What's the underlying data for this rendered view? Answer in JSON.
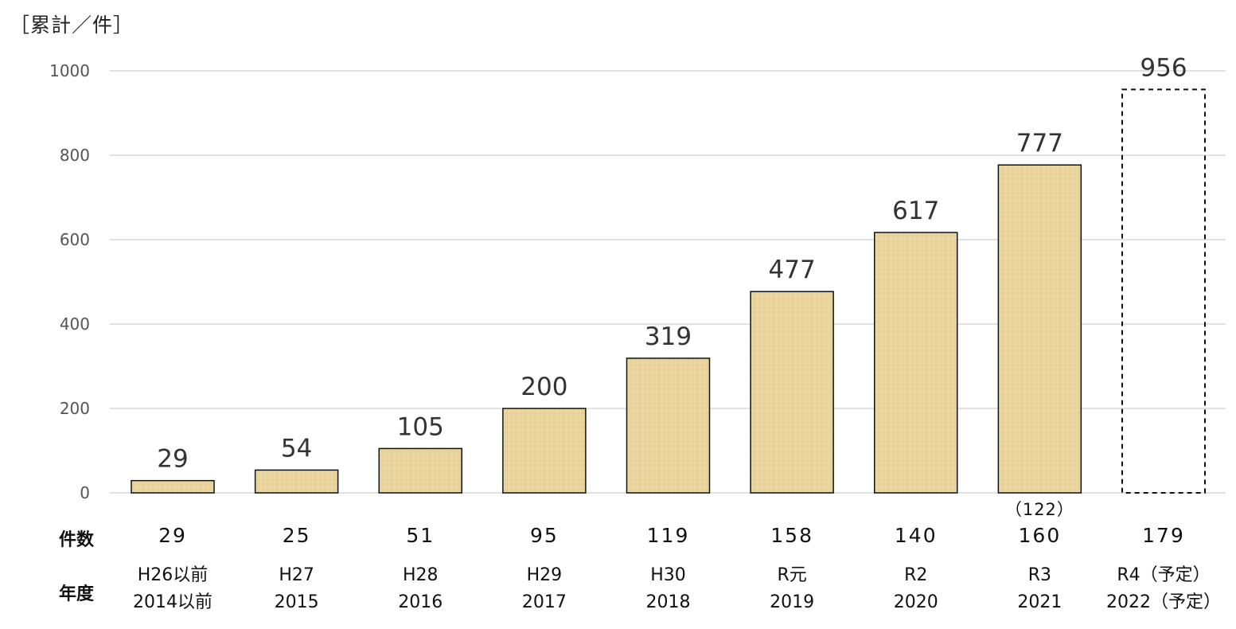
{
  "unit_label": "［累計／件］",
  "row_labels": {
    "count": "件数",
    "year": "年度"
  },
  "colors": {
    "bar_fill": "#e8d29a",
    "bar_stroke": "#111111",
    "grid": "#d9d9d9"
  },
  "chart_data": {
    "type": "bar",
    "title": "",
    "ylabel": "［累計／件］",
    "ylim": [
      0,
      1000
    ],
    "yticks": [
      0,
      200,
      400,
      600,
      800,
      1000
    ],
    "grid": true,
    "categories": [
      {
        "era": "H26以前",
        "year": "2014以前"
      },
      {
        "era": "H27",
        "year": "2015"
      },
      {
        "era": "H28",
        "year": "2016"
      },
      {
        "era": "H29",
        "year": "2017"
      },
      {
        "era": "H30",
        "year": "2018"
      },
      {
        "era": "R元",
        "year": "2019"
      },
      {
        "era": "R2",
        "year": "2020"
      },
      {
        "era": "R3",
        "year": "2021"
      },
      {
        "era": "R4（予定）",
        "year": "2022（予定）"
      }
    ],
    "series": [
      {
        "values": [
          29,
          54,
          105,
          200,
          319,
          477,
          617,
          777,
          956
        ],
        "planned": [
          false,
          false,
          false,
          false,
          false,
          false,
          false,
          false,
          true
        ]
      }
    ],
    "annual_counts": [
      "29",
      "25",
      "51",
      "95",
      "119",
      "158",
      "140",
      "160",
      "179"
    ],
    "annual_count_note": [
      "",
      "",
      "",
      "",
      "",
      "",
      "",
      "（122）",
      ""
    ]
  }
}
